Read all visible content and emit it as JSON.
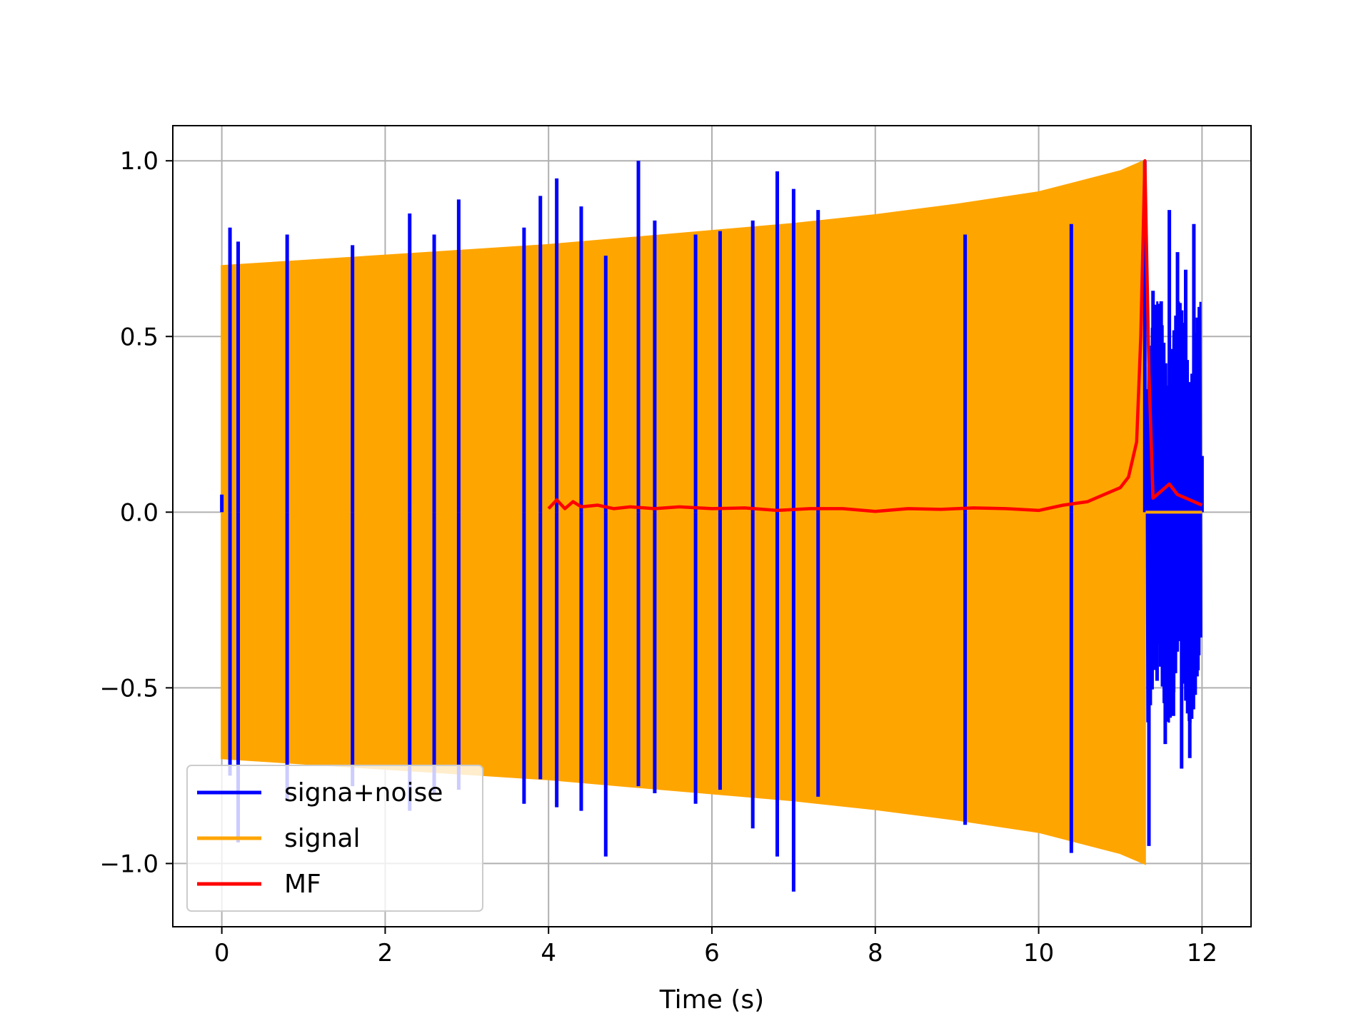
{
  "chart_data": {
    "type": "line",
    "title": "",
    "xlabel": "Time (s)",
    "ylabel": "",
    "xlim": [
      -0.6,
      12.6
    ],
    "ylim": [
      -1.18,
      1.1
    ],
    "grid": true,
    "legend_position": "lower-left",
    "x_ticks": [
      {
        "value": 0,
        "label": "0"
      },
      {
        "value": 2,
        "label": "2"
      },
      {
        "value": 4,
        "label": "4"
      },
      {
        "value": 6,
        "label": "6"
      },
      {
        "value": 8,
        "label": "8"
      },
      {
        "value": 10,
        "label": "10"
      },
      {
        "value": 12,
        "label": "12"
      }
    ],
    "y_ticks": [
      {
        "value": -1.0,
        "label": "−1.0"
      },
      {
        "value": -0.5,
        "label": "−0.5"
      },
      {
        "value": 0.0,
        "label": "0.0"
      },
      {
        "value": 0.5,
        "label": "0.5"
      },
      {
        "value": 1.0,
        "label": "1.0"
      }
    ],
    "series": [
      {
        "name": "signa+noise",
        "color": "#0000ff",
        "x": [
          0.0,
          0.1,
          0.1,
          0.2,
          0.2,
          0.8,
          0.8,
          1.6,
          1.6,
          2.3,
          2.3,
          2.6,
          2.6,
          2.9,
          2.9,
          3.7,
          3.7,
          3.9,
          3.9,
          4.1,
          4.1,
          4.4,
          4.4,
          4.7,
          4.7,
          5.1,
          5.1,
          5.3,
          5.3,
          5.8,
          5.8,
          6.1,
          6.1,
          6.5,
          6.5,
          6.8,
          6.8,
          7.0,
          7.0,
          7.3,
          7.3,
          9.1,
          9.1,
          10.4,
          10.4,
          11.3,
          11.35,
          11.4,
          11.45,
          11.5,
          11.55,
          11.6,
          11.65,
          11.7,
          11.75,
          11.8,
          11.85,
          11.9,
          11.95,
          12.0
        ],
        "y": [
          0.05,
          0.81,
          -0.75,
          0.77,
          -0.94,
          0.79,
          -0.82,
          0.76,
          -0.78,
          0.85,
          -0.85,
          0.79,
          -0.8,
          0.89,
          -0.79,
          0.81,
          -0.83,
          0.9,
          -0.76,
          0.95,
          -0.84,
          0.87,
          -0.85,
          0.73,
          -0.98,
          1.0,
          -0.78,
          0.83,
          -0.8,
          0.79,
          -0.83,
          0.8,
          -0.79,
          0.83,
          -0.9,
          0.97,
          -0.98,
          0.92,
          -1.08,
          0.86,
          -0.81,
          0.79,
          -0.89,
          0.82,
          -0.97,
          1.0,
          -0.95,
          0.63,
          -0.48,
          0.6,
          -0.66,
          0.86,
          -0.58,
          0.74,
          -0.73,
          0.69,
          -0.7,
          0.82,
          -0.45,
          0.16
        ]
      },
      {
        "name": "signal",
        "color": "#ffa500",
        "x": [
          0.0,
          1.0,
          2.0,
          3.0,
          4.0,
          5.0,
          6.0,
          7.0,
          8.0,
          9.0,
          10.0,
          11.0,
          11.3,
          11.31,
          12.0
        ],
        "y": [
          0.7,
          0.715,
          0.73,
          0.745,
          0.76,
          0.78,
          0.8,
          0.82,
          0.845,
          0.875,
          0.91,
          0.97,
          1.0,
          0.0,
          0.0
        ]
      },
      {
        "name": "MF",
        "color": "#ff0000",
        "x": [
          4.0,
          4.1,
          4.2,
          4.3,
          4.4,
          4.6,
          4.8,
          5.0,
          5.3,
          5.6,
          6.0,
          6.4,
          6.8,
          7.2,
          7.6,
          8.0,
          8.4,
          8.8,
          9.2,
          9.6,
          10.0,
          10.3,
          10.6,
          10.8,
          11.0,
          11.1,
          11.2,
          11.25,
          11.3,
          11.35,
          11.4,
          11.5,
          11.6,
          11.7,
          11.8,
          11.9,
          12.0
        ],
        "y": [
          0.01,
          0.035,
          0.01,
          0.03,
          0.015,
          0.02,
          0.01,
          0.015,
          0.01,
          0.015,
          0.01,
          0.012,
          0.005,
          0.01,
          0.01,
          0.002,
          0.01,
          0.008,
          0.012,
          0.01,
          0.005,
          0.02,
          0.03,
          0.05,
          0.07,
          0.1,
          0.2,
          0.5,
          1.0,
          0.4,
          0.04,
          0.06,
          0.08,
          0.05,
          0.04,
          0.03,
          0.02
        ]
      }
    ]
  }
}
